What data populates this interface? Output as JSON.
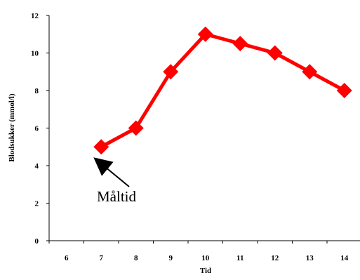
{
  "chart_data": {
    "type": "line",
    "x": [
      7,
      8,
      9,
      10,
      11,
      12,
      13,
      14
    ],
    "series": [
      {
        "values": [
          5,
          6,
          9,
          11,
          10.5,
          10,
          9,
          8
        ]
      }
    ],
    "x_categories": [
      "6",
      "7",
      "8",
      "9",
      "10",
      "11",
      "12",
      "13",
      "14"
    ],
    "xlabel": "Tid",
    "ylabel": "Blodsukker (mmol/l)",
    "y_ticks": [
      "0",
      "2",
      "4",
      "6",
      "8",
      "10",
      "12"
    ],
    "ylim": [
      0,
      12
    ],
    "grid": false,
    "annotation": {
      "text": "Måltid",
      "points_to": {
        "x": 7,
        "y": 5
      }
    },
    "colors": {
      "series": "#ff0000",
      "arrow": "#000000"
    }
  }
}
